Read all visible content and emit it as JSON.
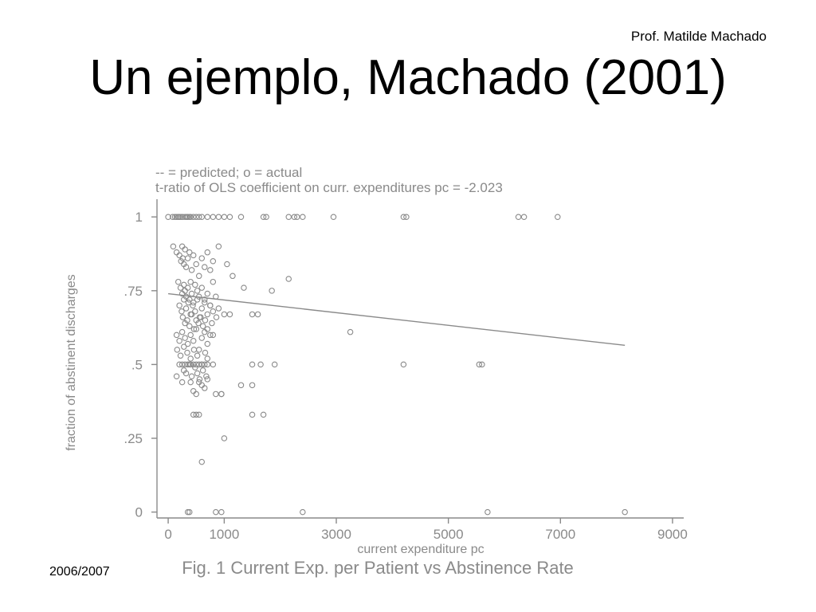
{
  "slide": {
    "author": "Prof. Matilde Machado",
    "title": "Un ejemplo, Machado (2001)",
    "date": "2006/2007"
  },
  "chart_data": {
    "type": "scatter",
    "legend_note": "-- = predicted; o = actual",
    "subtitle": "t-ratio of OLS coefficient on curr. expenditures pc = -2.023",
    "caption": "Fig. 1 Current Exp. per Patient vs Abstinence Rate",
    "xlabel": "current expenditure pc",
    "ylabel": "fraction of abstinent discharges",
    "xlim": [
      -200,
      9200
    ],
    "ylim": [
      -0.02,
      1.06
    ],
    "x_ticks": [
      0,
      1000,
      3000,
      5000,
      7000,
      9000
    ],
    "y_ticks": [
      0,
      0.25,
      0.5,
      0.75,
      1
    ],
    "y_tick_labels": [
      "0",
      ".25",
      ".5",
      ".75",
      "1"
    ],
    "grid": false,
    "colors": {
      "axis": "#8a8a8a",
      "point": "#8a8a8a",
      "fit": "#8a8a8a"
    },
    "fitted_line": {
      "x": [
        0,
        8150
      ],
      "y": [
        0.74,
        0.565
      ]
    },
    "points_x": [
      0,
      80,
      120,
      150,
      180,
      200,
      230,
      260,
      300,
      330,
      350,
      380,
      400,
      450,
      500,
      550,
      600,
      700,
      800,
      900,
      1000,
      1100,
      1300,
      1700,
      1750,
      2150,
      2250,
      2300,
      2400,
      2950,
      4200,
      4250,
      6250,
      6350,
      6950,
      90,
      150,
      200,
      230,
      250,
      260,
      280,
      300,
      320,
      350,
      380,
      420,
      450,
      500,
      550,
      600,
      650,
      700,
      750,
      800,
      900,
      1050,
      1150,
      1350,
      1850,
      2150,
      3250,
      180,
      220,
      250,
      280,
      300,
      320,
      350,
      380,
      400,
      420,
      450,
      480,
      520,
      550,
      600,
      650,
      700,
      750,
      800,
      850,
      900,
      200,
      240,
      280,
      320,
      360,
      400,
      440,
      480,
      520,
      560,
      600,
      650,
      700,
      750,
      800,
      260,
      300,
      340,
      380,
      420,
      460,
      500,
      540,
      580,
      620,
      660,
      700,
      780,
      860,
      1000,
      1100,
      1500,
      1600,
      150,
      200,
      250,
      300,
      350,
      400,
      450,
      500,
      550,
      600,
      650,
      700,
      750,
      800,
      160,
      220,
      280,
      340,
      400,
      460,
      520,
      600,
      660,
      700,
      280,
      320,
      380,
      420,
      480,
      520,
      560,
      620,
      680,
      200,
      250,
      300,
      350,
      400,
      450,
      500,
      550,
      600,
      650,
      700,
      800,
      1500,
      1650,
      1900,
      4200,
      5550,
      5600,
      150,
      250,
      400,
      450,
      500,
      550,
      600,
      650,
      700,
      850,
      950,
      1300,
      1500,
      450,
      500,
      550,
      950,
      1500,
      1700,
      1000,
      600,
      350,
      380,
      850,
      950,
      2400,
      5700,
      8150
    ],
    "points_y": [
      1,
      1,
      1,
      1,
      1,
      1,
      1,
      1,
      1,
      1,
      1,
      1,
      1,
      1,
      1,
      1,
      1,
      1,
      1,
      1,
      1,
      1,
      1,
      1,
      1,
      1,
      1,
      1,
      1,
      1,
      1,
      1,
      1,
      1,
      1,
      0.9,
      0.88,
      0.87,
      0.85,
      0.9,
      0.86,
      0.84,
      0.89,
      0.83,
      0.86,
      0.88,
      0.82,
      0.87,
      0.84,
      0.8,
      0.86,
      0.83,
      0.88,
      0.82,
      0.85,
      0.9,
      0.84,
      0.8,
      0.76,
      0.75,
      0.79,
      0.61,
      0.78,
      0.76,
      0.74,
      0.77,
      0.75,
      0.73,
      0.76,
      0.72,
      0.78,
      0.74,
      0.71,
      0.77,
      0.75,
      0.73,
      0.76,
      0.72,
      0.74,
      0.7,
      0.78,
      0.73,
      0.69,
      0.7,
      0.68,
      0.72,
      0.69,
      0.71,
      0.67,
      0.7,
      0.68,
      0.72,
      0.66,
      0.69,
      0.71,
      0.67,
      0.7,
      0.68,
      0.66,
      0.64,
      0.65,
      0.63,
      0.67,
      0.62,
      0.65,
      0.64,
      0.66,
      0.63,
      0.65,
      0.62,
      0.64,
      0.66,
      0.67,
      0.67,
      0.67,
      0.67,
      0.6,
      0.58,
      0.61,
      0.59,
      0.57,
      0.6,
      0.58,
      0.62,
      0.55,
      0.59,
      0.61,
      0.57,
      0.6,
      0.6,
      0.55,
      0.53,
      0.56,
      0.54,
      0.52,
      0.55,
      0.53,
      0.5,
      0.54,
      0.52,
      0.48,
      0.47,
      0.5,
      0.46,
      0.49,
      0.47,
      0.45,
      0.48,
      0.46,
      0.5,
      0.5,
      0.5,
      0.5,
      0.5,
      0.5,
      0.5,
      0.5,
      0.5,
      0.5,
      0.5,
      0.5,
      0.5,
      0.5,
      0.5,
      0.5,
      0.5,
      0.5,
      0.46,
      0.44,
      0.44,
      0.41,
      0.4,
      0.44,
      0.43,
      0.42,
      0.45,
      0.4,
      0.4,
      0.43,
      0.43,
      0.33,
      0.33,
      0.33,
      0.4,
      0.33,
      0.33,
      0.25,
      0.17,
      0,
      0,
      0,
      0,
      0,
      0,
      0
    ]
  }
}
